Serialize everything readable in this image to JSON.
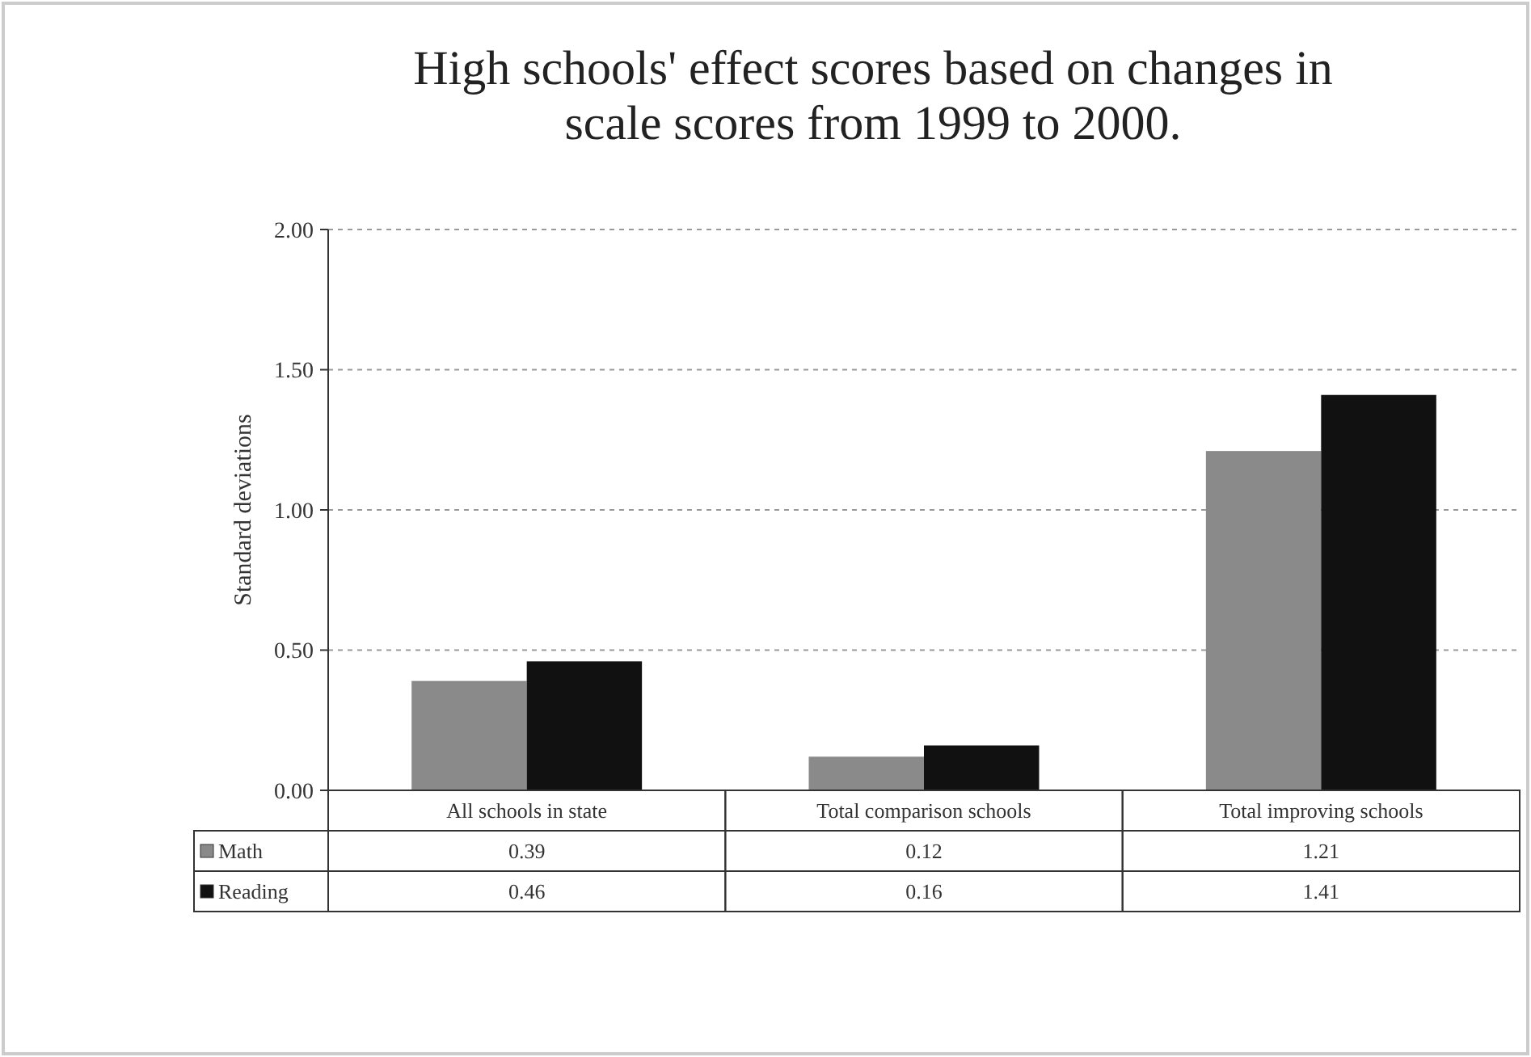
{
  "chart_data": {
    "type": "bar",
    "title": "High schools' effect scores based on changes in scale scores from 1999 to 2000.",
    "ylabel": "Standard deviations",
    "categories": [
      "All schools in state",
      "Total comparison schools",
      "Total improving schools"
    ],
    "series": [
      {
        "name": "Math",
        "color": "#8a8a8a",
        "values": [
          0.39,
          0.12,
          1.21
        ]
      },
      {
        "name": "Reading",
        "color": "#111111",
        "values": [
          0.46,
          0.16,
          1.41
        ]
      }
    ],
    "ylim": [
      0,
      2
    ],
    "yticks": [
      {
        "value": 0,
        "label": "0.00"
      },
      {
        "value": 0.5,
        "label": "0.50"
      },
      {
        "value": 1,
        "label": "1.00"
      },
      {
        "value": 1.5,
        "label": "1.50"
      },
      {
        "value": 2,
        "label": "2.00"
      }
    ],
    "grid": "y",
    "legend": "bottom",
    "data_labels": true
  }
}
